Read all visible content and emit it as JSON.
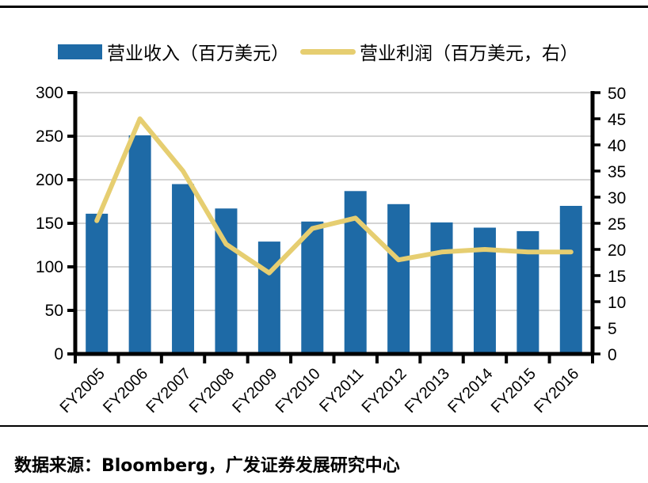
{
  "legend": {
    "items": [
      {
        "label": "营业收入（百万美元）",
        "type": "bar",
        "color": "#1E6AA6"
      },
      {
        "label": "营业利润（百万美元，右）",
        "type": "line",
        "color": "#E6CE71"
      }
    ]
  },
  "chart_data": {
    "type": "bar",
    "subtype": "bar+line combo, dual axis",
    "categories": [
      "FY2005",
      "FY2006",
      "FY2007",
      "FY2008",
      "FY2009",
      "FY2010",
      "FY2011",
      "FY2012",
      "FY2013",
      "FY2014",
      "FY2015",
      "FY2016"
    ],
    "series": [
      {
        "name": "营业收入（百万美元）",
        "type": "bar",
        "axis": "left",
        "color": "#1E6AA6",
        "values": [
          161,
          251,
          195,
          167,
          129,
          152,
          187,
          172,
          151,
          145,
          141,
          170
        ]
      },
      {
        "name": "营业利润（百万美元，右）",
        "type": "line",
        "axis": "right",
        "color": "#E6CE71",
        "values": [
          25.5,
          45,
          35,
          21,
          15.5,
          24,
          26,
          18,
          19.5,
          20,
          19.5,
          19.5
        ]
      }
    ],
    "left_axis": {
      "min": 0,
      "max": 300,
      "step": 50
    },
    "right_axis": {
      "min": 0,
      "max": 50,
      "step": 5
    },
    "grid": true,
    "gridline_color": "#C6C6C6",
    "axis_color": "#000000",
    "legend_position": "top"
  },
  "footer": {
    "source": "数据来源：Bloomberg，广发证券发展研究中心"
  }
}
